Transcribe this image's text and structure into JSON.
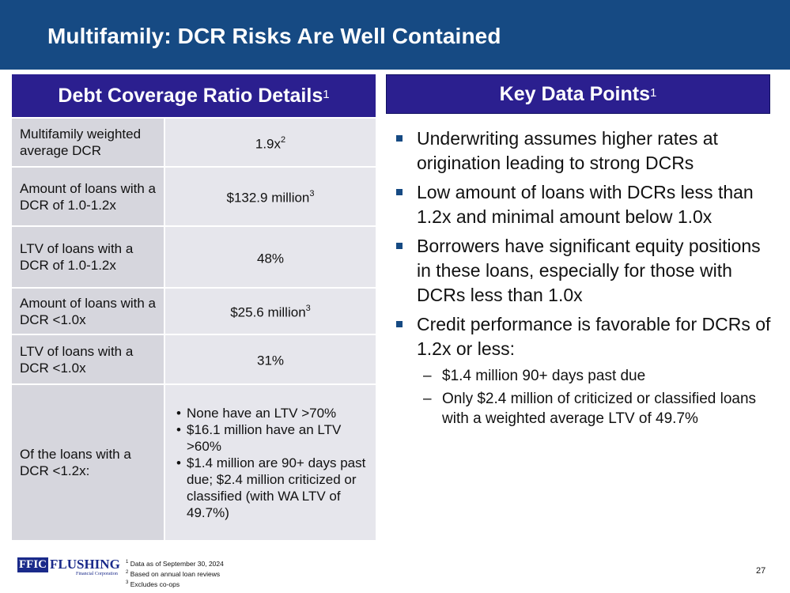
{
  "slide": {
    "title": "Multifamily: DCR Risks Are Well Contained",
    "page_number": "27"
  },
  "left_panel": {
    "heading": "Debt Coverage Ratio Details",
    "heading_sup": "1",
    "rows": [
      {
        "label": "Multifamily weighted average DCR",
        "value": "1.9x",
        "value_sup": "2"
      },
      {
        "label": "Amount of loans with a DCR of 1.0-1.2x",
        "value": "$132.9 million",
        "value_sup": "3"
      },
      {
        "label": "LTV of loans with a DCR of 1.0-1.2x",
        "value": "48%",
        "value_sup": ""
      },
      {
        "label": "Amount of loans with a DCR <1.0x",
        "value": "$25.6 million",
        "value_sup": "3"
      },
      {
        "label": "LTV of loans with a DCR <1.0x",
        "value": "31%",
        "value_sup": ""
      }
    ],
    "last_row": {
      "label": "Of the loans with a DCR <1.2x:",
      "items": [
        "None have an LTV >70%",
        "$16.1 million have an LTV >60%",
        "$1.4 million are 90+ days past due; $2.4 million criticized or classified (with WA LTV of 49.7%)"
      ]
    }
  },
  "right_panel": {
    "heading": "Key Data Points",
    "heading_sup": "1",
    "bullets": [
      "Underwriting assumes higher rates at origination leading to strong DCRs",
      "Low amount of loans with DCRs less than 1.2x and minimal amount below 1.0x",
      "Borrowers have significant equity positions in these loans, especially for those with DCRs less than 1.0x",
      "Credit performance is favorable for DCRs of 1.2x or less:"
    ],
    "sub_bullets": [
      "$1.4 million 90+ days past due",
      "Only $2.4 million of criticized or classified loans with a weighted average LTV of 49.7%"
    ]
  },
  "footer": {
    "logo_ffic": "FFIC",
    "logo_name": "FLUSHING",
    "logo_sub": "Financial Corporation",
    "notes": [
      {
        "num": "1",
        "text": "Data as of September 30, 2024"
      },
      {
        "num": "2",
        "text": "Based on annual loan reviews"
      },
      {
        "num": "3",
        "text": "Excludes co-ops"
      }
    ]
  },
  "colors": {
    "header_bg": "#164a83",
    "panel_heading_bg": "#2b1f8f",
    "table_label_bg": "#d6d6dd",
    "table_value_bg": "#e6e6ec"
  },
  "icons": {
    "bullet": "square-bullet-icon"
  }
}
